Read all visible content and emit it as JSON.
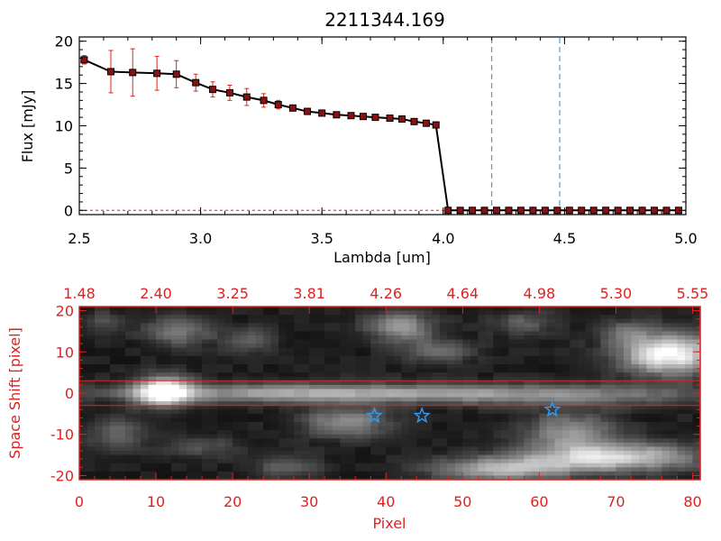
{
  "title": "2211344.169",
  "colors": {
    "top_axis": "#000000",
    "line": "#000000",
    "marker": "#8b1010",
    "error": "#dd2222",
    "dashed_vline": "#3388cc",
    "red_dashed": "#dd2222",
    "bottom_axis": "#dd2222",
    "star": "#3399ee"
  },
  "chart_data": [
    {
      "type": "line",
      "title": "2211344.169",
      "xlabel": "Lambda [um]",
      "ylabel": "Flux [mJy]",
      "xlim": [
        2.5,
        5.0
      ],
      "ylim": [
        -0.5,
        20.5
      ],
      "xticks": [
        2.5,
        3.0,
        3.5,
        4.0,
        4.5,
        5.0
      ],
      "xtick_labels": [
        "2.5",
        "3.0",
        "3.5",
        "4.0",
        "4.5",
        "5.0"
      ],
      "yticks": [
        0,
        5,
        10,
        15,
        20
      ],
      "ytick_labels": [
        "0",
        "5",
        "10",
        "15",
        "20"
      ],
      "series": [
        {
          "name": "flux",
          "x": [
            2.52,
            2.63,
            2.72,
            2.82,
            2.9,
            2.98,
            3.05,
            3.12,
            3.19,
            3.26,
            3.32,
            3.38,
            3.44,
            3.5,
            3.56,
            3.62,
            3.67,
            3.72,
            3.78,
            3.83,
            3.88,
            3.93,
            3.97,
            4.02,
            4.07,
            4.12,
            4.17,
            4.22,
            4.27,
            4.32,
            4.37,
            4.42,
            4.47,
            4.52,
            4.57,
            4.62,
            4.67,
            4.72,
            4.77,
            4.82,
            4.87,
            4.92,
            4.97
          ],
          "y": [
            17.8,
            16.4,
            16.3,
            16.2,
            16.1,
            15.1,
            14.3,
            13.9,
            13.4,
            13.0,
            12.5,
            12.1,
            11.7,
            11.5,
            11.3,
            11.2,
            11.1,
            11.0,
            10.9,
            10.8,
            10.5,
            10.3,
            10.1,
            0,
            0,
            0,
            0,
            0,
            0,
            0,
            0,
            0,
            0,
            0,
            0,
            0,
            0,
            0,
            0,
            0,
            0,
            0,
            0
          ],
          "yerr": [
            0.5,
            2.5,
            2.8,
            2.0,
            1.6,
            1.0,
            0.9,
            0.9,
            1.0,
            0.8,
            0.5,
            0.3,
            0.2,
            0.2,
            0.1,
            0.1,
            0.1,
            0.1,
            0.1,
            0.1,
            0.1,
            0.1,
            0.1,
            0,
            0,
            0,
            0,
            0,
            0,
            0,
            0,
            0,
            0,
            0,
            0,
            0,
            0,
            0,
            0,
            0,
            0,
            0,
            0
          ]
        }
      ],
      "vlines": [
        4.2,
        4.48
      ],
      "hline": 0
    },
    {
      "type": "heatmap",
      "xlabel": "Pixel",
      "ylabel": "Space Shift [pixel]",
      "xlim": [
        0,
        81
      ],
      "ylim": [
        -21,
        21
      ],
      "xticks": [
        0,
        10,
        20,
        30,
        40,
        50,
        60,
        70,
        80
      ],
      "xtick_labels": [
        "0",
        "10",
        "20",
        "30",
        "40",
        "50",
        "60",
        "70",
        "80"
      ],
      "yticks": [
        -20,
        -10,
        0,
        10,
        20
      ],
      "ytick_labels": [
        "-20",
        "-10",
        "0",
        "10",
        "20"
      ],
      "top_ticks": [
        0,
        10,
        20,
        30,
        40,
        50,
        60,
        70,
        80
      ],
      "top_tick_labels": [
        "1.48",
        "2.40",
        "3.25",
        "3.81",
        "4.26",
        "4.64",
        "4.98",
        "5.30",
        "5.55"
      ],
      "hlines": [
        3,
        -3
      ],
      "stars": [
        {
          "x": 38.5,
          "y": -5.5
        },
        {
          "x": 44.7,
          "y": -5.5
        },
        {
          "x": 61.7,
          "y": -4
        }
      ],
      "blobs": [
        {
          "x": 11,
          "y": 0.5,
          "sx": 2.5,
          "sy": 2.5,
          "a": 0.95
        },
        {
          "x": 30,
          "y": 0,
          "sx": 18,
          "sy": 1.6,
          "a": 0.55
        },
        {
          "x": 63,
          "y": -0.5,
          "sx": 14,
          "sy": 1.8,
          "a": 0.35
        },
        {
          "x": 77,
          "y": 9.5,
          "sx": 4.5,
          "sy": 3.5,
          "a": 0.9
        },
        {
          "x": 69,
          "y": -15.5,
          "sx": 8,
          "sy": 2.5,
          "a": 0.75
        },
        {
          "x": 55,
          "y": -18.5,
          "sx": 6,
          "sy": 2,
          "a": 0.55
        },
        {
          "x": 64,
          "y": -9,
          "sx": 4,
          "sy": 3,
          "a": 0.45
        },
        {
          "x": 42,
          "y": 16,
          "sx": 3,
          "sy": 2.5,
          "a": 0.5
        },
        {
          "x": 47,
          "y": 10,
          "sx": 3,
          "sy": 2,
          "a": 0.3
        },
        {
          "x": 13,
          "y": 15,
          "sx": 3,
          "sy": 2.5,
          "a": 0.35
        },
        {
          "x": 35,
          "y": -7,
          "sx": 4,
          "sy": 2.5,
          "a": 0.45
        },
        {
          "x": 22,
          "y": 13,
          "sx": 2.5,
          "sy": 2,
          "a": 0.25
        },
        {
          "x": 5,
          "y": -10,
          "sx": 2.5,
          "sy": 2.5,
          "a": 0.3
        },
        {
          "x": 27,
          "y": -18,
          "sx": 3,
          "sy": 2,
          "a": 0.25
        },
        {
          "x": 16,
          "y": -13,
          "sx": 3,
          "sy": 2,
          "a": 0.2
        },
        {
          "x": 58,
          "y": 17,
          "sx": 3,
          "sy": 2,
          "a": 0.25
        },
        {
          "x": 71,
          "y": 15,
          "sx": 2.5,
          "sy": 2,
          "a": 0.25
        },
        {
          "x": 3,
          "y": 17,
          "sx": 2,
          "sy": 2,
          "a": 0.2
        }
      ]
    }
  ]
}
